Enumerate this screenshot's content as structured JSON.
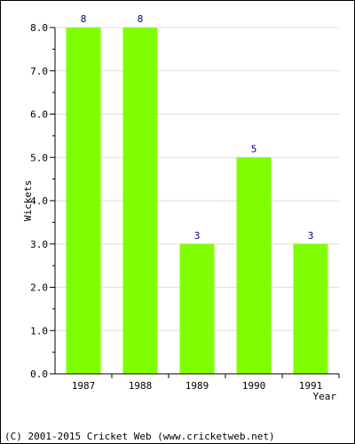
{
  "chart_data": {
    "type": "bar",
    "categories": [
      "1987",
      "1988",
      "1989",
      "1990",
      "1991"
    ],
    "values": [
      8,
      8,
      3,
      5,
      3
    ],
    "data_labels": [
      "8",
      "8",
      "3",
      "5",
      "3"
    ],
    "xlabel": "Year",
    "ylabel": "Wickets",
    "ylim": [
      0,
      8
    ],
    "yticks": [
      "0.0",
      "1.0",
      "2.0",
      "3.0",
      "4.0",
      "5.0",
      "6.0",
      "7.0",
      "8.0"
    ],
    "grid": true,
    "bar_color": "#80ff00",
    "label_color": "#000080"
  },
  "footer": {
    "copyright": "(C) 2001-2015 Cricket Web (www.cricketweb.net)"
  }
}
